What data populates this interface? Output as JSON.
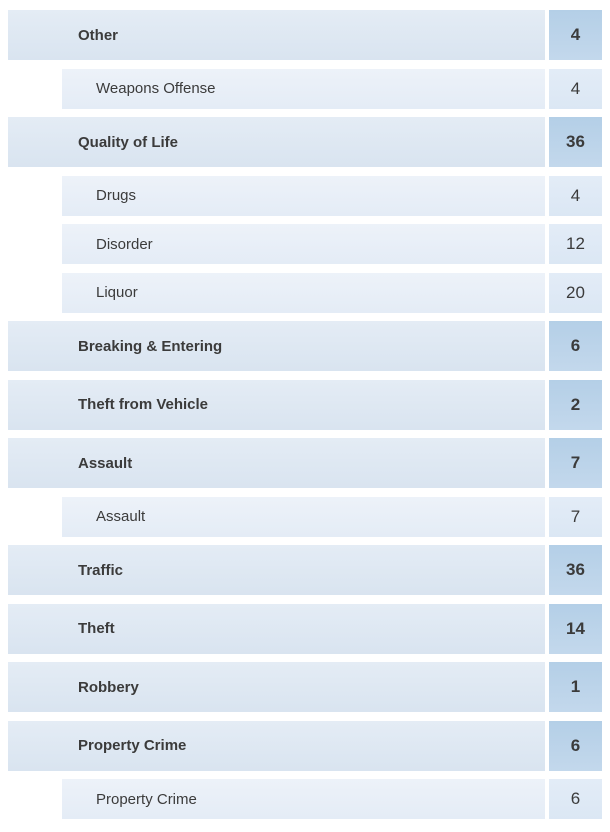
{
  "colors": {
    "page_bg": "#ffffff",
    "parent_bar_top": "#e4ecf5",
    "parent_bar_bottom": "#d9e4f0",
    "child_bar_top": "#edf2f9",
    "child_bar_bottom": "#e4ecf6",
    "parent_count_top": "#b4cfe7",
    "parent_count_bottom": "#c3d8ec",
    "child_count_top": "#e3ecf7",
    "child_count_bottom": "#dbe7f4",
    "text": "#3b3b3b"
  },
  "list": {
    "rows": [
      {
        "label": "Other",
        "count": "4",
        "level": "parent"
      },
      {
        "label": "Weapons Offense",
        "count": "4",
        "level": "child"
      },
      {
        "label": "Quality of Life",
        "count": "36",
        "level": "parent"
      },
      {
        "label": "Drugs",
        "count": "4",
        "level": "child"
      },
      {
        "label": "Disorder",
        "count": "12",
        "level": "child"
      },
      {
        "label": "Liquor",
        "count": "20",
        "level": "child"
      },
      {
        "label": "Breaking & Entering",
        "count": "6",
        "level": "parent"
      },
      {
        "label": "Theft from Vehicle",
        "count": "2",
        "level": "parent"
      },
      {
        "label": "Assault",
        "count": "7",
        "level": "parent"
      },
      {
        "label": "Assault",
        "count": "7",
        "level": "child"
      },
      {
        "label": "Traffic",
        "count": "36",
        "level": "parent"
      },
      {
        "label": "Theft",
        "count": "14",
        "level": "parent"
      },
      {
        "label": "Robbery",
        "count": "1",
        "level": "parent"
      },
      {
        "label": "Property Crime",
        "count": "6",
        "level": "parent"
      },
      {
        "label": "Property Crime",
        "count": "6",
        "level": "child"
      }
    ]
  }
}
